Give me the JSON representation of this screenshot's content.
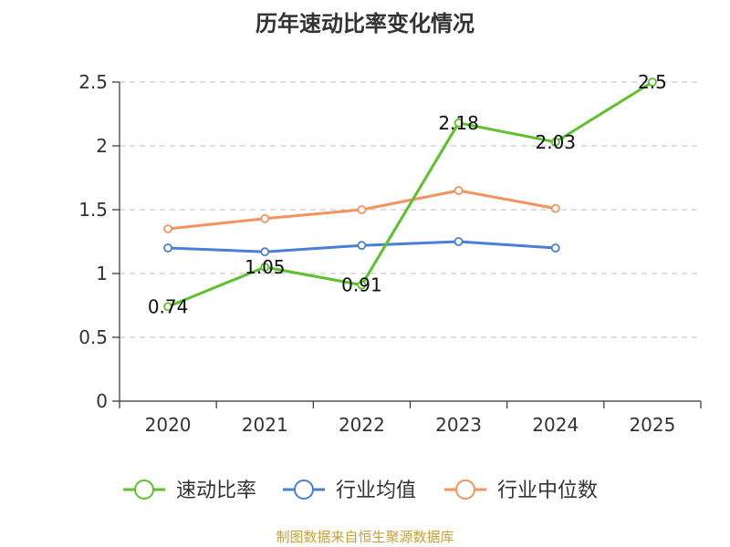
{
  "chart_data": {
    "type": "line",
    "title": "历年速动比率变化情况",
    "categories": [
      "2020",
      "2021",
      "2022",
      "2023",
      "2024",
      "2025"
    ],
    "ylim": [
      0,
      2.5
    ],
    "yticks": [
      "0",
      "0.5",
      "1",
      "1.5",
      "2",
      "2.5"
    ],
    "xlabel": "",
    "ylabel": "",
    "grid": true,
    "legend": "bottom",
    "series": [
      {
        "name": "速动比率",
        "color": "#5cc12a",
        "values": [
          0.74,
          1.05,
          0.91,
          2.18,
          2.03,
          2.5
        ],
        "labels": [
          "0.74",
          "1.05",
          "0.91",
          "2.18",
          "2.03",
          "2.5"
        ]
      },
      {
        "name": "行业均值",
        "color": "#4a7fd6",
        "values": [
          1.2,
          1.17,
          1.22,
          1.25,
          1.2,
          null
        ]
      },
      {
        "name": "行业中位数",
        "color": "#f4935e",
        "values": [
          1.35,
          1.43,
          1.5,
          1.65,
          1.51,
          null
        ]
      }
    ]
  },
  "source": "制图数据来自恒生聚源数据库"
}
